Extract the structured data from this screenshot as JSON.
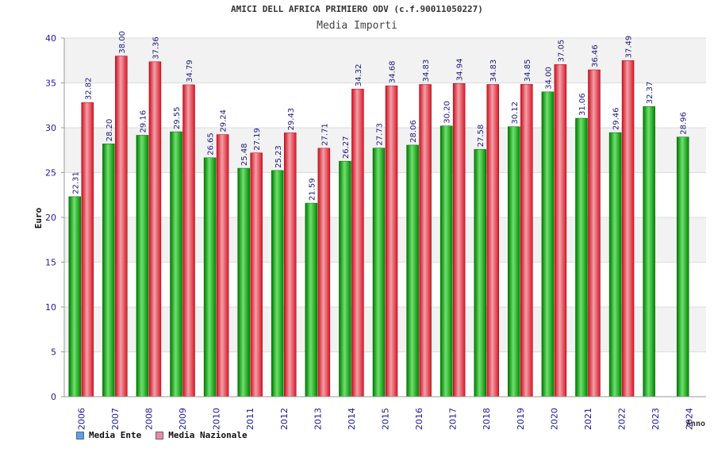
{
  "header": {
    "title": "AMICI DELL AFRICA PRIMIERO ODV (c.f.90011050227)",
    "subtitle": "Media Importi"
  },
  "legend": {
    "items": [
      {
        "label": "Media Ente",
        "color": "#5aa0f0"
      },
      {
        "label": "Media Nazionale",
        "color": "#e88aa8"
      }
    ]
  },
  "chart_data": {
    "type": "bar",
    "title": "Media Importi",
    "xlabel": "Anno",
    "ylabel": "Euro",
    "ylim": [
      0,
      40
    ],
    "yticks": [
      0,
      5,
      10,
      15,
      20,
      25,
      30,
      35,
      40
    ],
    "categories": [
      "2006",
      "2007",
      "2008",
      "2009",
      "2010",
      "2011",
      "2012",
      "2013",
      "2014",
      "2015",
      "2016",
      "2017",
      "2018",
      "2019",
      "2020",
      "2021",
      "2022",
      "2023",
      "2024"
    ],
    "series": [
      {
        "name": "Media Ente",
        "color": "#00aa00",
        "values": [
          22.31,
          28.2,
          29.16,
          29.55,
          26.65,
          25.48,
          25.23,
          21.59,
          26.27,
          27.73,
          28.06,
          30.2,
          27.58,
          30.12,
          34.0,
          31.06,
          29.46,
          32.37,
          28.96
        ],
        "labels": [
          "22.31",
          "28.20",
          "29.16",
          "29.55",
          "26.65",
          "25.48",
          "25.23",
          "21.59",
          "26.27",
          "27.73",
          "28.06",
          "30.20",
          "27.58",
          "30.12",
          "34.00",
          "31.06",
          "29.46",
          "32.37",
          "28.96"
        ]
      },
      {
        "name": "Media Nazionale",
        "color": "#e8202a",
        "values": [
          32.82,
          38.0,
          37.36,
          34.79,
          29.24,
          27.19,
          29.43,
          27.71,
          34.32,
          34.68,
          34.83,
          34.94,
          34.83,
          34.85,
          37.05,
          36.46,
          37.49,
          null,
          null
        ],
        "labels": [
          "32.82",
          "38.00",
          "37.36",
          "34.79",
          "29.24",
          "27.19",
          "29.43",
          "27.71",
          "34.32",
          "34.68",
          "34.83",
          "34.94",
          "34.83",
          "34.85",
          "37.05",
          "36.46",
          "37.49",
          null,
          null
        ]
      }
    ],
    "grid": true,
    "legend_position": "bottom-left"
  }
}
